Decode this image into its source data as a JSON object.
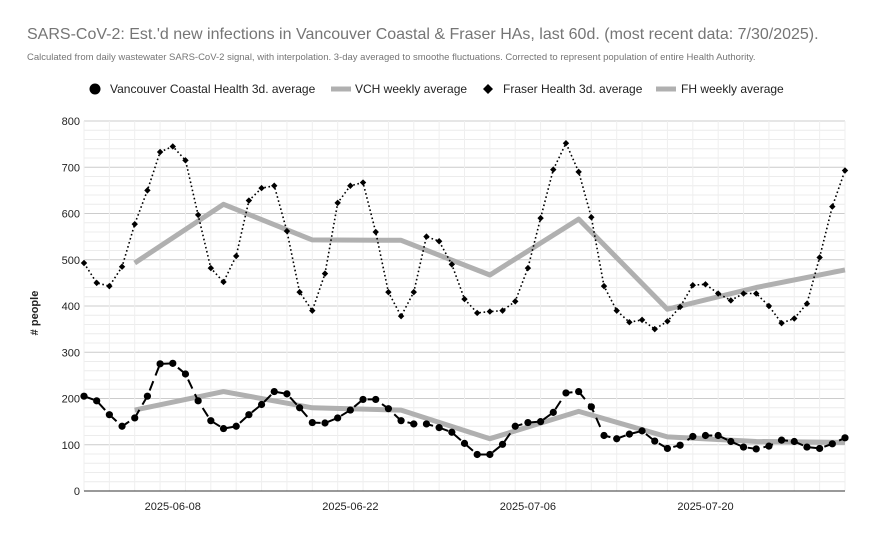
{
  "chart_data": {
    "type": "line",
    "title": "SARS-CoV-2: Est.'d new infections in Vancouver Coastal & Fraser HAs, last 60d. (most recent data: 7/30/2025).",
    "subtitle": "Calculated from daily wastewater SARS-CoV-2 signal, with interpolation. 3-day averaged to smoothe fluctuations. Corrected to represent population of entire Health Authority.",
    "ylabel": "# people",
    "xlabel": "",
    "ylim": [
      0,
      800
    ],
    "yticks": [
      "0",
      "100",
      "200",
      "300",
      "400",
      "500",
      "600",
      "700",
      "800"
    ],
    "x_start": "2025-06-01",
    "xlim": [
      0,
      60
    ],
    "xticks": [
      {
        "label": "2025-06-08",
        "day": 7
      },
      {
        "label": "2025-06-22",
        "day": 21
      },
      {
        "label": "2025-07-06",
        "day": 35
      },
      {
        "label": "2025-07-20",
        "day": 49
      }
    ],
    "grid": true,
    "legend_position": "top",
    "series": [
      {
        "name": "Vancouver Coastal Health 3d. average",
        "style": "dashed",
        "marker": "circle",
        "color": "#000000",
        "x": [
          0,
          1,
          2,
          3,
          4,
          5,
          6,
          7,
          8,
          9,
          10,
          11,
          12,
          13,
          14,
          15,
          16,
          17,
          18,
          19,
          20,
          21,
          22,
          23,
          24,
          25,
          26,
          27,
          28,
          29,
          30,
          31,
          32,
          33,
          34,
          35,
          36,
          37,
          38,
          39,
          40,
          41,
          42,
          43,
          44,
          45,
          46,
          47,
          48,
          49,
          50,
          51,
          52,
          53,
          54,
          55,
          56,
          57,
          58,
          59,
          60
        ],
        "values": [
          205,
          195,
          165,
          140,
          158,
          205,
          275,
          276,
          253,
          195,
          152,
          135,
          140,
          165,
          187,
          215,
          210,
          180,
          148,
          147,
          158,
          175,
          198,
          198,
          178,
          152,
          145,
          145,
          137,
          127,
          103,
          79,
          79,
          101,
          140,
          148,
          150,
          170,
          212,
          215,
          182,
          120,
          113,
          123,
          130,
          108,
          92,
          99,
          118,
          120,
          120,
          107,
          95,
          91,
          97,
          110,
          107,
          95,
          92,
          102,
          115
        ]
      },
      {
        "name": "VCH weekly average",
        "style": "solid-thick",
        "color": "#b0b0b0",
        "x": [
          4,
          11,
          18,
          25,
          32,
          39,
          46,
          53,
          60
        ],
        "values": [
          175,
          215,
          180,
          175,
          113,
          172,
          117,
          107,
          105
        ]
      },
      {
        "name": "Fraser Health 3d. average",
        "style": "dotted",
        "marker": "diamond",
        "color": "#000000",
        "x": [
          0,
          1,
          2,
          3,
          4,
          5,
          6,
          7,
          8,
          9,
          10,
          11,
          12,
          13,
          14,
          15,
          16,
          17,
          18,
          19,
          20,
          21,
          22,
          23,
          24,
          25,
          26,
          27,
          28,
          29,
          30,
          31,
          32,
          33,
          34,
          35,
          36,
          37,
          38,
          39,
          40,
          41,
          42,
          43,
          44,
          45,
          46,
          47,
          48,
          49,
          50,
          51,
          52,
          53,
          54,
          55,
          56,
          57,
          58,
          59,
          60
        ],
        "values": [
          493,
          450,
          443,
          485,
          577,
          650,
          733,
          745,
          715,
          597,
          482,
          452,
          508,
          628,
          655,
          660,
          562,
          430,
          390,
          470,
          623,
          660,
          667,
          560,
          430,
          378,
          430,
          550,
          540,
          490,
          415,
          385,
          388,
          390,
          410,
          482,
          590,
          695,
          752,
          690,
          592,
          443,
          390,
          365,
          370,
          350,
          367,
          398,
          445,
          447,
          427,
          412,
          427,
          427,
          400,
          363,
          373,
          405,
          505,
          615,
          693
        ]
      },
      {
        "name": "FH weekly average",
        "style": "solid-thick",
        "color": "#b0b0b0",
        "x": [
          4,
          11,
          18,
          25,
          32,
          39,
          46,
          53,
          60
        ],
        "values": [
          493,
          620,
          543,
          542,
          467,
          588,
          393,
          440,
          478
        ]
      }
    ]
  }
}
